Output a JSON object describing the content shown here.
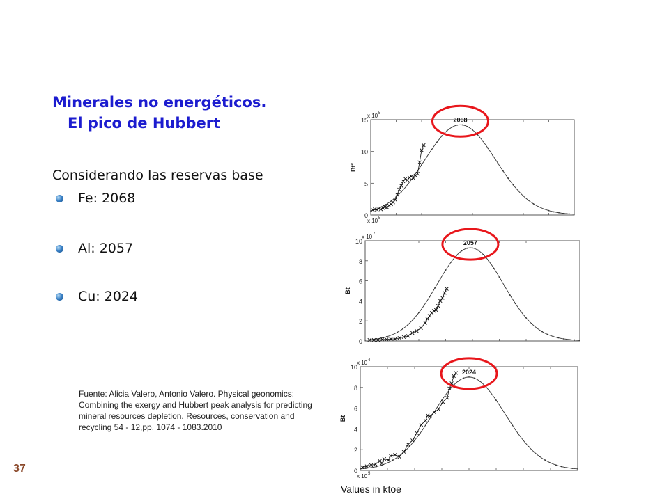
{
  "slide": {
    "title_line1": "Minerales no energéticos.",
    "title_line2": "El pico de Hubbert",
    "intro": "Considerando las reservas base",
    "bullets": [
      "Fe: 2068",
      "Al: 2057",
      "Cu: 2024"
    ],
    "source": "Fuente: Alicia Valero, Antonio Valero. Physical geonomics: Combining the exergy and Hubbert peak analysis  for predicting mineral resources depletion. Resources, conservation and recycling 54 - 12,pp. 1074 - 1083.2010",
    "page_number": "37",
    "units_note": "Values in ktoe"
  },
  "colors": {
    "title": "#1c1ccf",
    "highlight_circle": "#e8161b",
    "page_number": "#8b4a2c"
  },
  "chart_data": [
    {
      "type": "line",
      "series_name": "Fe",
      "ylabel": "Bt*",
      "exponent_label": "x 10",
      "exponent_power": "5",
      "bottom_exponent_label": "x 10",
      "bottom_exponent_power": "5",
      "ylim": [
        0,
        15
      ],
      "y_ticks": [
        0,
        5,
        10,
        15
      ],
      "peak_label": "2068",
      "peak_value": 14.2,
      "fitted_curve": {
        "peak_at": 0.44,
        "peak": 14.2,
        "width": 0.175,
        "baseline": 0.05,
        "xlim": [
          0,
          1
        ]
      },
      "historical_points": [
        [
          0.01,
          0.8
        ],
        [
          0.02,
          0.9
        ],
        [
          0.03,
          0.85
        ],
        [
          0.04,
          1.0
        ],
        [
          0.05,
          0.9
        ],
        [
          0.06,
          1.1
        ],
        [
          0.07,
          1.3
        ],
        [
          0.08,
          1.2
        ],
        [
          0.09,
          1.5
        ],
        [
          0.1,
          1.7
        ],
        [
          0.11,
          2.0
        ],
        [
          0.12,
          2.4
        ],
        [
          0.13,
          3.2
        ],
        [
          0.14,
          4.0
        ],
        [
          0.15,
          4.6
        ],
        [
          0.16,
          5.3
        ],
        [
          0.17,
          5.7
        ],
        [
          0.18,
          5.5
        ],
        [
          0.19,
          5.9
        ],
        [
          0.2,
          6.1
        ],
        [
          0.21,
          5.8
        ],
        [
          0.22,
          6.2
        ],
        [
          0.23,
          6.5
        ],
        [
          0.24,
          8.3
        ],
        [
          0.25,
          10.2
        ],
        [
          0.26,
          11.0
        ]
      ]
    },
    {
      "type": "line",
      "series_name": "Al",
      "ylabel": "Bt",
      "exponent_label": "x 10",
      "exponent_power": "7",
      "ylim": [
        0,
        10
      ],
      "y_ticks": [
        0,
        2,
        4,
        6,
        8,
        10
      ],
      "peak_label": "2057",
      "peak_value": 9.3,
      "fitted_curve": {
        "peak_at": 0.49,
        "peak": 9.3,
        "width": 0.155,
        "baseline": 0.03,
        "xlim": [
          0,
          1
        ]
      },
      "historical_points": [
        [
          0.02,
          0.1
        ],
        [
          0.04,
          0.1
        ],
        [
          0.06,
          0.1
        ],
        [
          0.08,
          0.15
        ],
        [
          0.1,
          0.15
        ],
        [
          0.12,
          0.2
        ],
        [
          0.14,
          0.2
        ],
        [
          0.16,
          0.3
        ],
        [
          0.18,
          0.4
        ],
        [
          0.2,
          0.5
        ],
        [
          0.22,
          0.8
        ],
        [
          0.24,
          1.0
        ],
        [
          0.26,
          1.3
        ],
        [
          0.28,
          1.8
        ],
        [
          0.29,
          2.2
        ],
        [
          0.3,
          2.5
        ],
        [
          0.31,
          2.8
        ],
        [
          0.32,
          3.0
        ],
        [
          0.33,
          3.1
        ],
        [
          0.34,
          3.5
        ],
        [
          0.35,
          4.0
        ],
        [
          0.36,
          4.3
        ],
        [
          0.37,
          4.8
        ],
        [
          0.38,
          5.2
        ]
      ]
    },
    {
      "type": "line",
      "series_name": "Cu",
      "ylabel": "Bt",
      "exponent_label": "x 10",
      "exponent_power": "4",
      "bottom_exponent_label": "x 10",
      "bottom_exponent_power": "5",
      "ylim": [
        0,
        10
      ],
      "y_ticks": [
        0,
        2,
        4,
        6,
        8,
        10
      ],
      "peak_label": "2024",
      "peak_value": 9.0,
      "fitted_curve": {
        "peak_at": 0.5,
        "peak": 9.0,
        "width": 0.165,
        "baseline": 0.05,
        "xlim": [
          0,
          1
        ]
      },
      "historical_points": [
        [
          0.01,
          0.3
        ],
        [
          0.03,
          0.4
        ],
        [
          0.05,
          0.5
        ],
        [
          0.07,
          0.6
        ],
        [
          0.09,
          0.9
        ],
        [
          0.1,
          0.7
        ],
        [
          0.11,
          1.1
        ],
        [
          0.13,
          1.0
        ],
        [
          0.14,
          1.4
        ],
        [
          0.16,
          1.5
        ],
        [
          0.18,
          1.3
        ],
        [
          0.2,
          1.8
        ],
        [
          0.22,
          2.5
        ],
        [
          0.24,
          2.9
        ],
        [
          0.26,
          3.6
        ],
        [
          0.28,
          4.4
        ],
        [
          0.3,
          4.8
        ],
        [
          0.31,
          5.3
        ],
        [
          0.32,
          5.2
        ],
        [
          0.34,
          5.6
        ],
        [
          0.36,
          5.9
        ],
        [
          0.38,
          6.6
        ],
        [
          0.4,
          7.0
        ],
        [
          0.41,
          7.9
        ],
        [
          0.42,
          8.4
        ],
        [
          0.43,
          9.1
        ],
        [
          0.44,
          9.4
        ]
      ]
    }
  ]
}
